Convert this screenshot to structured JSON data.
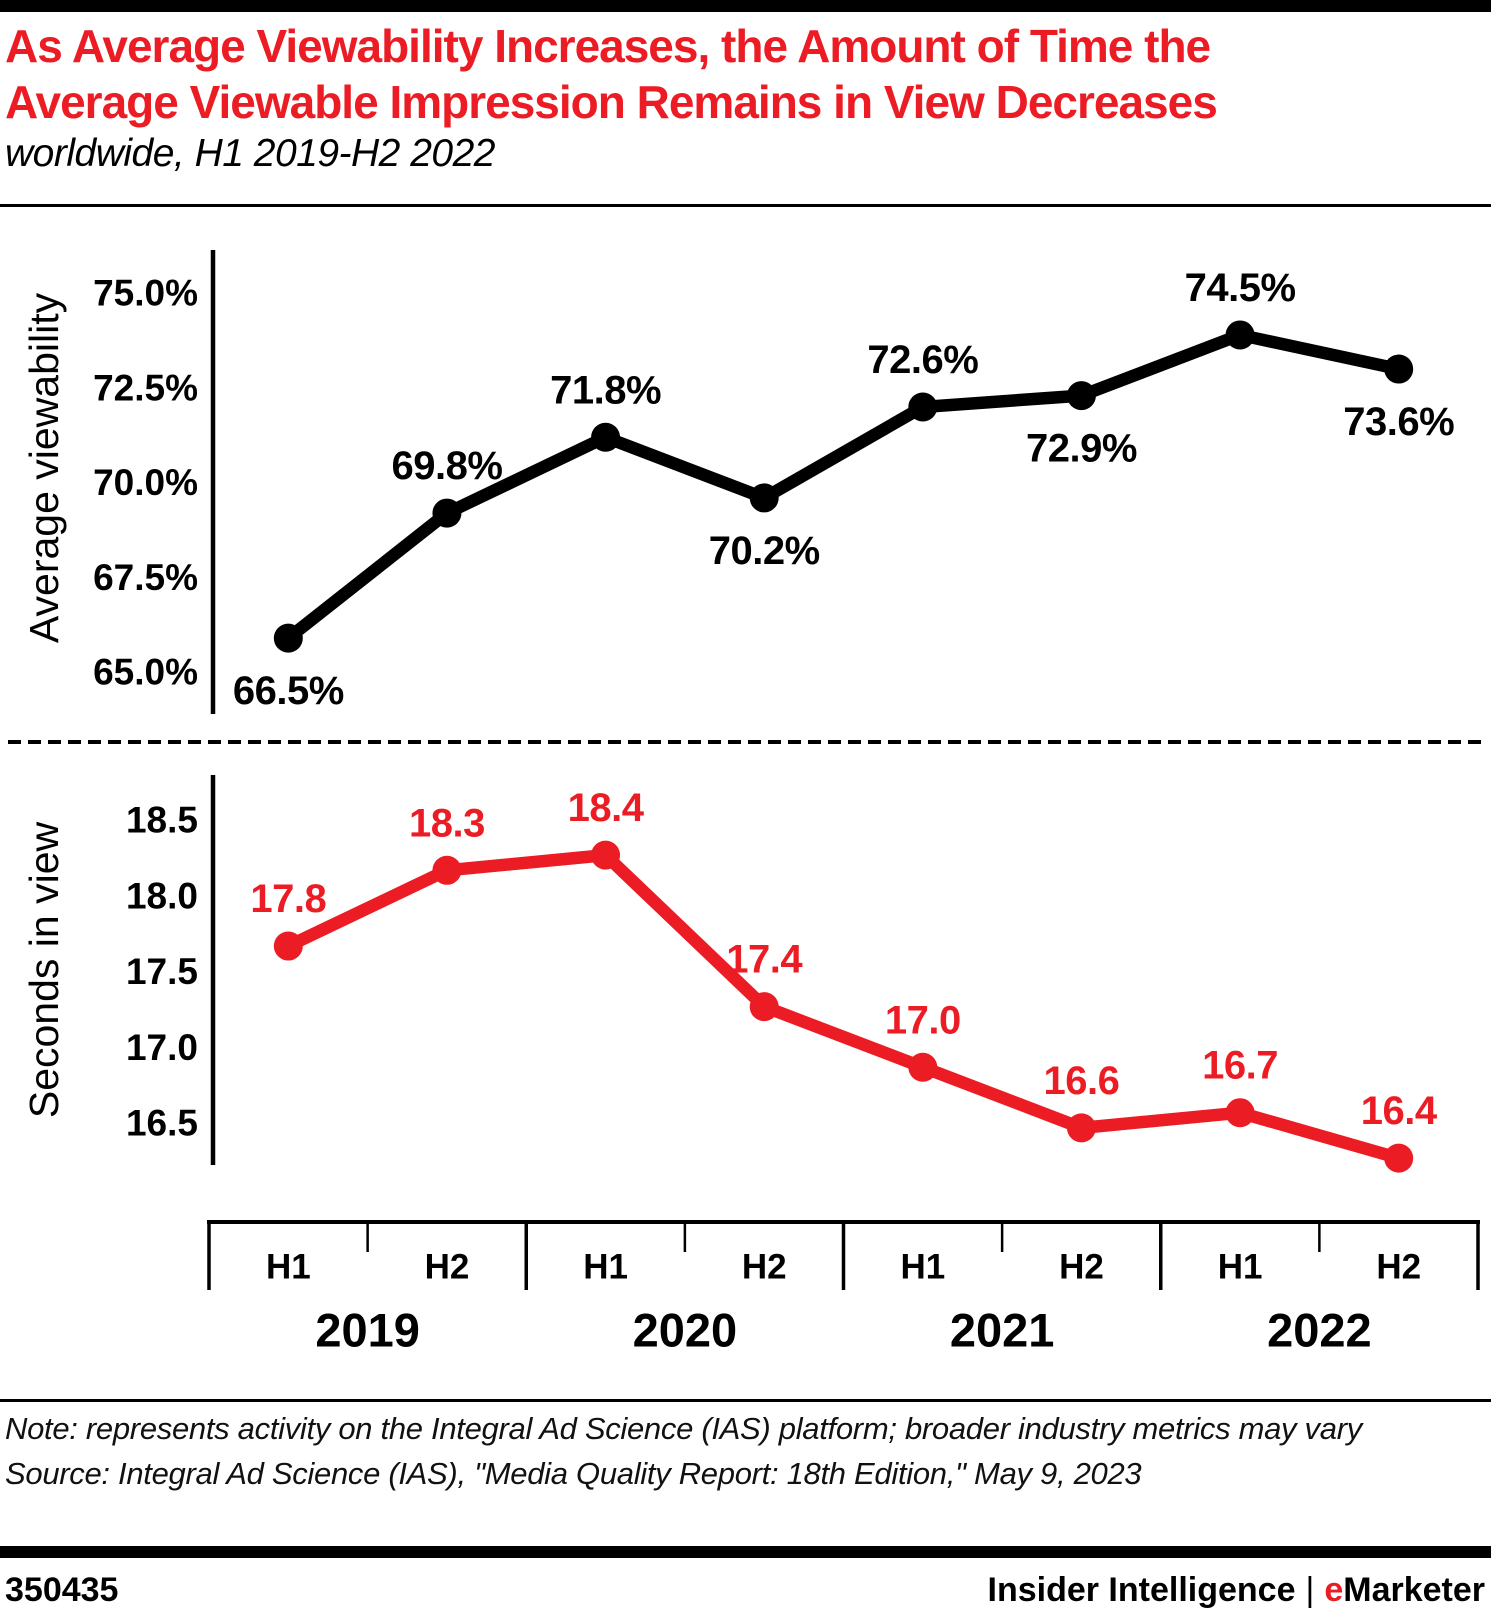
{
  "header": {
    "title_line1": "As Average Viewability Increases, the Amount of Time the",
    "title_line2": "Average Viewable Impression Remains in View Decreases",
    "subtitle": "worldwide, H1 2019-H2 2022"
  },
  "chart_data": {
    "type": "line",
    "x": {
      "half_labels": [
        "H1",
        "H2",
        "H1",
        "H2",
        "H1",
        "H2",
        "H1",
        "H2"
      ],
      "year_labels": [
        "2019",
        "2020",
        "2021",
        "2022"
      ],
      "categories": [
        "H1 2019",
        "H2 2019",
        "H1 2020",
        "H2 2020",
        "H1 2021",
        "H2 2021",
        "H1 2022",
        "H2 2022"
      ]
    },
    "series": [
      {
        "name": "Average viewability",
        "color": "#000000",
        "unit": "%",
        "values": [
          66.5,
          69.8,
          71.8,
          70.2,
          72.6,
          72.9,
          74.5,
          73.6
        ],
        "point_labels": [
          "66.5%",
          "69.8%",
          "71.8%",
          "70.2%",
          "72.6%",
          "72.9%",
          "74.5%",
          "73.6%"
        ],
        "label_positions": [
          "below",
          "above",
          "above",
          "below",
          "above",
          "below",
          "above",
          "below"
        ],
        "y_axis": {
          "label": "Average viewability",
          "tick_labels": [
            "75.0%",
            "72.5%",
            "70.0%",
            "67.5%",
            "65.0%"
          ],
          "tick_values": [
            75.0,
            72.5,
            70.0,
            67.5,
            65.0
          ],
          "range": [
            65.0,
            75.0
          ]
        }
      },
      {
        "name": "Seconds in view",
        "color": "#ec1c24",
        "unit": "seconds",
        "values": [
          17.8,
          18.3,
          18.4,
          17.4,
          17.0,
          16.6,
          16.7,
          16.4
        ],
        "point_labels": [
          "17.8",
          "18.3",
          "18.4",
          "17.4",
          "17.0",
          "16.6",
          "16.7",
          "16.4"
        ],
        "label_positions": [
          "above",
          "above",
          "above",
          "above",
          "above",
          "above",
          "above",
          "above"
        ],
        "y_axis": {
          "label": "Seconds in view",
          "tick_labels": [
            "18.5",
            "18.0",
            "17.5",
            "17.0",
            "16.5"
          ],
          "tick_values": [
            18.5,
            18.0,
            17.5,
            17.0,
            16.5
          ],
          "range": [
            16.4,
            18.5
          ]
        }
      }
    ],
    "grid": false,
    "legend": "none"
  },
  "footer": {
    "note": "Note: represents activity on the Integral Ad Science (IAS) platform; broader industry metrics may vary",
    "source": "Source: Integral Ad Science (IAS), \"Media Quality Report: 18th Edition,\" May 9, 2023",
    "chart_id": "350435",
    "brand_left": "Insider Intelligence",
    "brand_separator": "|",
    "brand_e": "e",
    "brand_rest": "Marketer"
  },
  "colors": {
    "accent_red": "#ec1c24",
    "black": "#000000"
  }
}
